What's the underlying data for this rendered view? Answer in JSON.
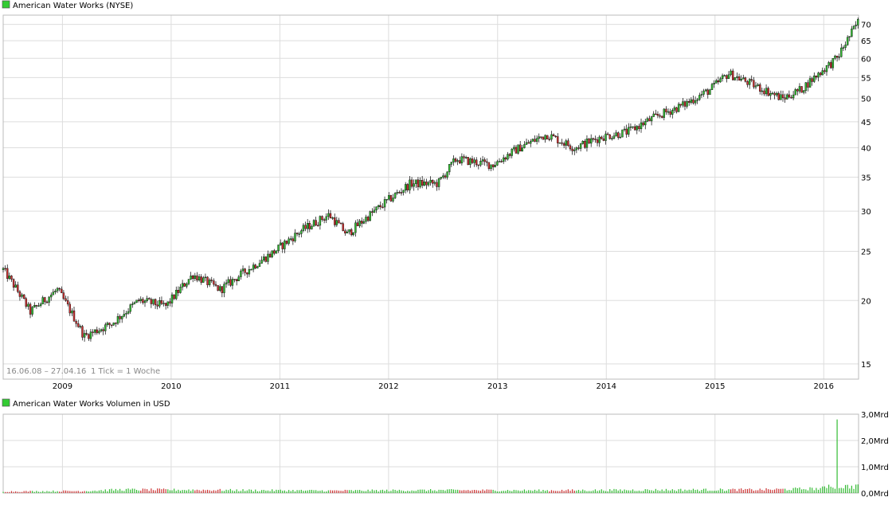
{
  "price_panel": {
    "title": "American Water Works (NYSE)",
    "legend_color": "#33cc33",
    "footnote_range": "16.06.08 – 27.04.16",
    "footnote_tick": "1 Tick = 1 Woche"
  },
  "volume_panel": {
    "title": "American Water Works Volumen in USD",
    "legend_color": "#33cc33"
  },
  "colors": {
    "up": "#33bb33",
    "down": "#cc3333",
    "wick": "#000000",
    "grid": "#dddddd",
    "frame": "#bbbbbb",
    "text": "#000000",
    "footnote": "#888888"
  },
  "chart_data": [
    {
      "type": "line",
      "chart_style": "weekly candlestick",
      "series": [
        {
          "name": "American Water Works (NYSE)",
          "x": [
            "2008-06",
            "2008-09",
            "2008-12",
            "2009-03",
            "2009-06",
            "2009-09",
            "2009-12",
            "2010-03",
            "2010-06",
            "2010-09",
            "2010-12",
            "2011-03",
            "2011-06",
            "2011-08",
            "2011-12",
            "2012-03",
            "2012-06",
            "2012-08",
            "2012-12",
            "2013-03",
            "2013-06",
            "2013-09",
            "2013-12",
            "2014-03",
            "2014-06",
            "2014-09",
            "2014-12",
            "2015-02",
            "2015-05",
            "2015-08",
            "2015-10",
            "2015-12",
            "2016-02",
            "2016-04"
          ],
          "y": [
            23,
            19,
            21,
            17,
            18,
            20,
            19.5,
            22.5,
            21,
            23,
            25,
            27.5,
            29.5,
            27,
            31,
            34,
            34,
            38,
            37,
            40,
            42.5,
            40,
            42,
            43,
            46,
            48.5,
            52,
            56,
            53,
            50,
            52,
            56,
            60,
            71
          ]
        }
      ],
      "x_tick_labels": [
        "2009",
        "2010",
        "2011",
        "2012",
        "2013",
        "2014",
        "2015",
        "2016"
      ],
      "y_tick_labels": [
        "15",
        "20",
        "25",
        "30",
        "35",
        "40",
        "45",
        "50",
        "55",
        "60",
        "65",
        "70"
      ],
      "y_scale": "log",
      "ylim": [
        14,
        73
      ],
      "xlim": [
        "2008-06-16",
        "2016-04-27"
      ],
      "grid": true,
      "legend_position": "top-left"
    },
    {
      "type": "bar",
      "series": [
        {
          "name": "American Water Works Volumen in USD",
          "x": [
            "2008-06",
            "2009-03",
            "2009-07",
            "2010-03",
            "2011-06",
            "2012-06",
            "2013-06",
            "2014-06",
            "2015-06",
            "2015-12",
            "2016-01",
            "2016-02",
            "2016-04"
          ],
          "y": [
            0.06,
            0.08,
            0.13,
            0.12,
            0.09,
            0.11,
            0.1,
            0.12,
            0.13,
            0.17,
            0.2,
            2.8,
            0.3
          ]
        }
      ],
      "y_unit": "Mrd",
      "y_tick_labels": [
        "0,0Mrd",
        "1,0Mrd",
        "2,0Mrd",
        "3,0Mrd"
      ],
      "ylim": [
        0,
        3
      ],
      "grid": true,
      "legend_position": "top-left"
    }
  ]
}
